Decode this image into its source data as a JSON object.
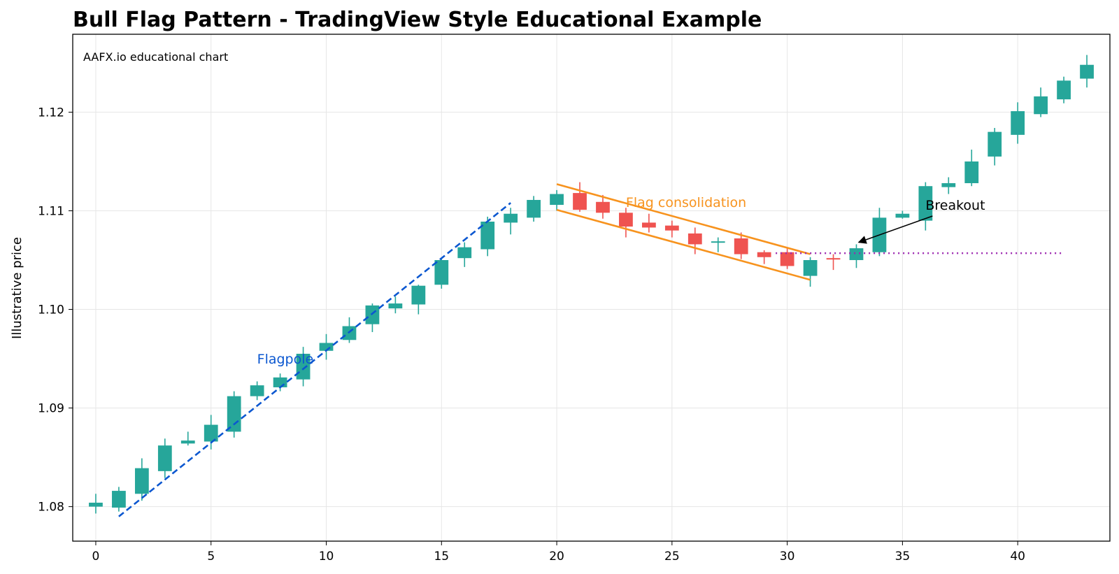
{
  "chart_data": {
    "type": "candlestick",
    "title": "Bull Flag Pattern - TradingView Style Educational Example",
    "watermark": "AAFX.io educational chart",
    "xlabel": "",
    "ylabel": "Illustrative price",
    "xlim": [
      -1,
      44
    ],
    "ylim": [
      1.0765,
      1.1279
    ],
    "x_ticks": [
      0,
      5,
      10,
      15,
      20,
      25,
      30,
      35,
      40
    ],
    "y_ticks": [
      1.08,
      1.09,
      1.1,
      1.11,
      1.12
    ],
    "y_tick_labels": [
      "1.08",
      "1.09",
      "1.10",
      "1.11",
      "1.12"
    ],
    "grid": true,
    "colors": {
      "up": "#26a69a",
      "down": "#ef5350",
      "flagpole": "#0b57d0",
      "flag": "#f7931e",
      "breakout_level": "#9c27b0"
    },
    "candles": [
      {
        "x": 0,
        "o": 1.08,
        "c": 1.0804,
        "h": 1.0813,
        "l": 1.0793
      },
      {
        "x": 1,
        "o": 1.0799,
        "c": 1.0816,
        "h": 1.082,
        "l": 1.0795
      },
      {
        "x": 2,
        "o": 1.0813,
        "c": 1.0839,
        "h": 1.0849,
        "l": 1.0806
      },
      {
        "x": 3,
        "o": 1.0836,
        "c": 1.0862,
        "h": 1.0869,
        "l": 1.0829
      },
      {
        "x": 4,
        "o": 1.0864,
        "c": 1.0867,
        "h": 1.0876,
        "l": 1.0862
      },
      {
        "x": 5,
        "o": 1.0866,
        "c": 1.0883,
        "h": 1.0893,
        "l": 1.0858
      },
      {
        "x": 6,
        "o": 1.0876,
        "c": 1.0912,
        "h": 1.0917,
        "l": 1.087
      },
      {
        "x": 7,
        "o": 1.0912,
        "c": 1.0923,
        "h": 1.0927,
        "l": 1.0908
      },
      {
        "x": 8,
        "o": 1.0921,
        "c": 1.0931,
        "h": 1.0935,
        "l": 1.0917
      },
      {
        "x": 9,
        "o": 1.0929,
        "c": 1.0955,
        "h": 1.0962,
        "l": 1.0922
      },
      {
        "x": 10,
        "o": 1.0958,
        "c": 1.0966,
        "h": 1.0975,
        "l": 1.0949
      },
      {
        "x": 11,
        "o": 1.0969,
        "c": 1.0983,
        "h": 1.0992,
        "l": 1.0966
      },
      {
        "x": 12,
        "o": 1.0985,
        "c": 1.1004,
        "h": 1.1006,
        "l": 1.0977
      },
      {
        "x": 13,
        "o": 1.1001,
        "c": 1.1006,
        "h": 1.1013,
        "l": 1.0996
      },
      {
        "x": 14,
        "o": 1.1005,
        "c": 1.1024,
        "h": 1.1025,
        "l": 1.0995
      },
      {
        "x": 15,
        "o": 1.1025,
        "c": 1.105,
        "h": 1.1051,
        "l": 1.1021
      },
      {
        "x": 16,
        "o": 1.1052,
        "c": 1.1063,
        "h": 1.1068,
        "l": 1.1043
      },
      {
        "x": 17,
        "o": 1.1061,
        "c": 1.1089,
        "h": 1.1094,
        "l": 1.1054
      },
      {
        "x": 18,
        "o": 1.1088,
        "c": 1.1097,
        "h": 1.1103,
        "l": 1.1076
      },
      {
        "x": 19,
        "o": 1.1093,
        "c": 1.1111,
        "h": 1.1115,
        "l": 1.1089
      },
      {
        "x": 20,
        "o": 1.1106,
        "c": 1.1117,
        "h": 1.1121,
        "l": 1.11
      },
      {
        "x": 21,
        "o": 1.1118,
        "c": 1.1101,
        "h": 1.1129,
        "l": 1.1099
      },
      {
        "x": 22,
        "o": 1.1109,
        "c": 1.1098,
        "h": 1.1116,
        "l": 1.1092
      },
      {
        "x": 23,
        "o": 1.1098,
        "c": 1.1084,
        "h": 1.1103,
        "l": 1.1073
      },
      {
        "x": 24,
        "o": 1.1088,
        "c": 1.1083,
        "h": 1.1097,
        "l": 1.1078
      },
      {
        "x": 25,
        "o": 1.1085,
        "c": 1.108,
        "h": 1.109,
        "l": 1.1073
      },
      {
        "x": 26,
        "o": 1.1077,
        "c": 1.1066,
        "h": 1.1083,
        "l": 1.1056
      },
      {
        "x": 27,
        "o": 1.1068,
        "c": 1.1069,
        "h": 1.1073,
        "l": 1.1058
      },
      {
        "x": 28,
        "o": 1.1072,
        "c": 1.1056,
        "h": 1.1078,
        "l": 1.1051
      },
      {
        "x": 29,
        "o": 1.1058,
        "c": 1.1053,
        "h": 1.106,
        "l": 1.1046
      },
      {
        "x": 30,
        "o": 1.1058,
        "c": 1.1044,
        "h": 1.1063,
        "l": 1.1041
      },
      {
        "x": 31,
        "o": 1.1034,
        "c": 1.105,
        "h": 1.1053,
        "l": 1.1023
      },
      {
        "x": 32,
        "o": 1.1052,
        "c": 1.1051,
        "h": 1.1056,
        "l": 1.104
      },
      {
        "x": 33,
        "o": 1.105,
        "c": 1.1062,
        "h": 1.1066,
        "l": 1.1042
      },
      {
        "x": 34,
        "o": 1.1058,
        "c": 1.1093,
        "h": 1.1103,
        "l": 1.1054
      },
      {
        "x": 35,
        "o": 1.1093,
        "c": 1.1097,
        "h": 1.11,
        "l": 1.1092
      },
      {
        "x": 36,
        "o": 1.109,
        "c": 1.1125,
        "h": 1.1129,
        "l": 1.108
      },
      {
        "x": 37,
        "o": 1.1124,
        "c": 1.1128,
        "h": 1.1134,
        "l": 1.1117
      },
      {
        "x": 38,
        "o": 1.1128,
        "c": 1.115,
        "h": 1.1162,
        "l": 1.1125
      },
      {
        "x": 39,
        "o": 1.1155,
        "c": 1.118,
        "h": 1.1184,
        "l": 1.1146
      },
      {
        "x": 40,
        "o": 1.1177,
        "c": 1.1201,
        "h": 1.121,
        "l": 1.1168
      },
      {
        "x": 41,
        "o": 1.1198,
        "c": 1.1216,
        "h": 1.1225,
        "l": 1.1195
      },
      {
        "x": 42,
        "o": 1.1213,
        "c": 1.1232,
        "h": 1.1236,
        "l": 1.1209
      },
      {
        "x": 43,
        "o": 1.1234,
        "c": 1.1248,
        "h": 1.1258,
        "l": 1.1225
      }
    ],
    "flagpole_line": {
      "x": [
        1,
        18
      ],
      "y": [
        1.079,
        1.1108
      ]
    },
    "flag_upper": {
      "x": [
        20,
        31
      ],
      "y": [
        1.1127,
        1.1056
      ]
    },
    "flag_lower": {
      "x": [
        20,
        31
      ],
      "y": [
        1.1101,
        1.103
      ]
    },
    "breakout_level": {
      "x": [
        29.5,
        42
      ],
      "y": 1.1057
    },
    "annotations": {
      "flagpole": {
        "text": "Flagpole",
        "x": 7,
        "y": 1.095
      },
      "flag": {
        "text": "Flag consolidation",
        "x": 23,
        "y": 1.1109
      },
      "breakout": {
        "text": "Breakout",
        "x": 36,
        "y": 1.1106,
        "arrow_to_x": 33.1,
        "arrow_to_y": 1.1068
      }
    }
  }
}
